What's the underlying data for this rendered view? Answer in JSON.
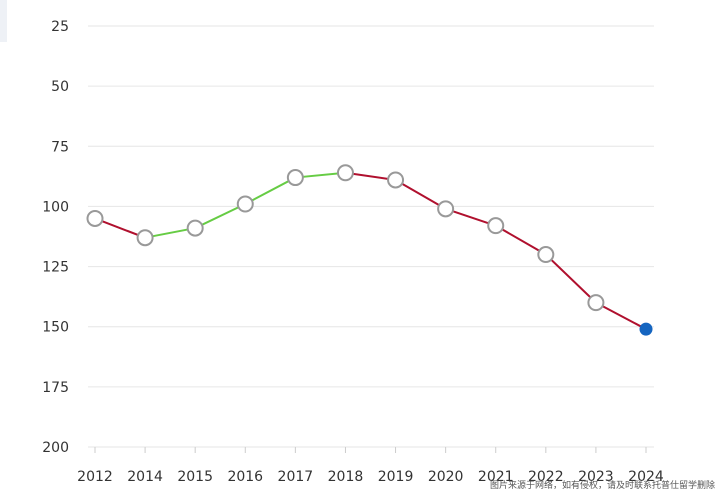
{
  "chart_data": {
    "type": "line",
    "title": "",
    "xlabel": "",
    "ylabel": "",
    "y_inverted": true,
    "ylim": [
      25,
      200
    ],
    "yticks": [
      25,
      50,
      75,
      100,
      125,
      150,
      175,
      200
    ],
    "x": [
      "2012",
      "2014",
      "2015",
      "2016",
      "2017",
      "2018",
      "2019",
      "2020",
      "2021",
      "2022",
      "2023",
      "2024"
    ],
    "values": [
      105,
      113,
      109,
      99,
      88,
      86,
      89,
      101,
      108,
      120,
      140,
      151
    ],
    "colors": {
      "rising": "#66cc44",
      "falling": "#b0102e",
      "marker_fill": "#ffffff",
      "marker_stroke": "#999999",
      "last_marker": "#1565c0",
      "grid": "#e6e6e6"
    }
  },
  "watermark": "图片来源于网络，如有侵权，请及时联系托普仕留学删除"
}
